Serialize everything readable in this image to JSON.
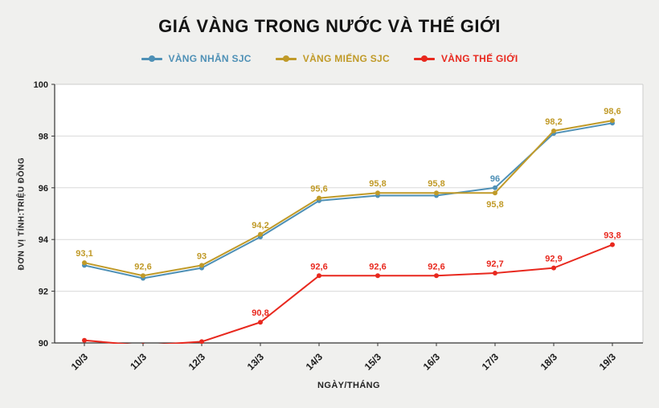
{
  "title": "GIÁ VÀNG TRONG NƯỚC VÀ THẾ GIỚI",
  "chart_data": {
    "type": "line",
    "categories": [
      "10/3",
      "11/3",
      "12/3",
      "13/3",
      "14/3",
      "15/3",
      "16/3",
      "17/3",
      "18/3",
      "19/3"
    ],
    "series": [
      {
        "name": "VÀNG NHẪN SJC",
        "key": "vang-nhan-sjc",
        "color": "#4e90b6",
        "values": [
          93.0,
          92.5,
          92.9,
          94.1,
          95.5,
          95.7,
          95.7,
          96.0,
          98.1,
          98.5
        ],
        "labels": [
          null,
          null,
          null,
          null,
          null,
          null,
          null,
          "96",
          null,
          null
        ]
      },
      {
        "name": "VÀNG MIẾNG SJC",
        "key": "vang-mieng-sjc",
        "color": "#c09a28",
        "values": [
          93.1,
          92.6,
          93.0,
          94.2,
          95.6,
          95.8,
          95.8,
          95.8,
          98.2,
          98.6
        ],
        "labels": [
          "93,1",
          "92,6",
          "93",
          "94,2",
          "95,6",
          "95,8",
          "95,8",
          "95,8",
          "98,2",
          "98,6"
        ]
      },
      {
        "name": "VÀNG THẾ GIỚI",
        "key": "vang-the-gioi",
        "color": "#e8281e",
        "values": [
          90.1,
          89.9,
          90.05,
          90.8,
          92.6,
          92.6,
          92.6,
          92.7,
          92.9,
          93.8
        ],
        "labels": [
          null,
          null,
          null,
          "90,8",
          "92,6",
          "92,6",
          "92,6",
          "92,7",
          "92,9",
          "93,8"
        ]
      }
    ],
    "ylabel": "ĐƠN VỊ TÍNH:TRIỆU ĐỒNG",
    "xlabel": "NGÀY/THÁNG",
    "ylim": [
      90,
      100
    ],
    "yticks": [
      90,
      92,
      94,
      96,
      98,
      100
    ],
    "grid": true,
    "legend_position": "top"
  }
}
